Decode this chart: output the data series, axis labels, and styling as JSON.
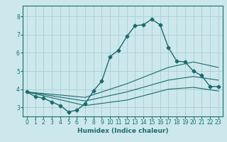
{
  "title": "",
  "xlabel": "Humidex (Indice chaleur)",
  "bg_color": "#cce8ec",
  "grid_color": "#aacdd4",
  "line_color": "#1a6b6b",
  "xlim": [
    -0.5,
    23.5
  ],
  "ylim": [
    2.5,
    8.6
  ],
  "xticks": [
    0,
    1,
    2,
    3,
    4,
    5,
    6,
    7,
    8,
    9,
    10,
    11,
    12,
    13,
    14,
    15,
    16,
    17,
    18,
    19,
    20,
    21,
    22,
    23
  ],
  "yticks": [
    3,
    4,
    5,
    6,
    7,
    8
  ],
  "lines": [
    {
      "x": [
        0,
        1,
        2,
        3,
        4,
        5,
        6,
        7,
        8,
        9,
        10,
        11,
        12,
        13,
        14,
        15,
        16,
        17,
        18,
        19,
        20,
        21,
        22,
        23
      ],
      "y": [
        3.85,
        3.6,
        3.5,
        3.3,
        3.1,
        2.75,
        2.85,
        3.2,
        3.9,
        4.45,
        5.8,
        6.15,
        6.9,
        7.5,
        7.55,
        7.85,
        7.55,
        6.3,
        5.55,
        5.5,
        5.0,
        4.75,
        4.15,
        4.15
      ],
      "marker": "D",
      "markersize": 2.5,
      "lw": 1.0
    },
    {
      "x": [
        0,
        7,
        12,
        17,
        20,
        23
      ],
      "y": [
        3.85,
        3.55,
        4.3,
        5.2,
        5.5,
        5.2
      ],
      "marker": null,
      "markersize": 0,
      "lw": 0.8
    },
    {
      "x": [
        0,
        7,
        12,
        17,
        20,
        23
      ],
      "y": [
        3.85,
        3.35,
        3.85,
        4.5,
        4.7,
        4.5
      ],
      "marker": null,
      "markersize": 0,
      "lw": 0.8
    },
    {
      "x": [
        0,
        7,
        12,
        17,
        20,
        23
      ],
      "y": [
        3.85,
        3.1,
        3.4,
        4.0,
        4.1,
        3.9
      ],
      "marker": null,
      "markersize": 0,
      "lw": 0.8
    }
  ]
}
